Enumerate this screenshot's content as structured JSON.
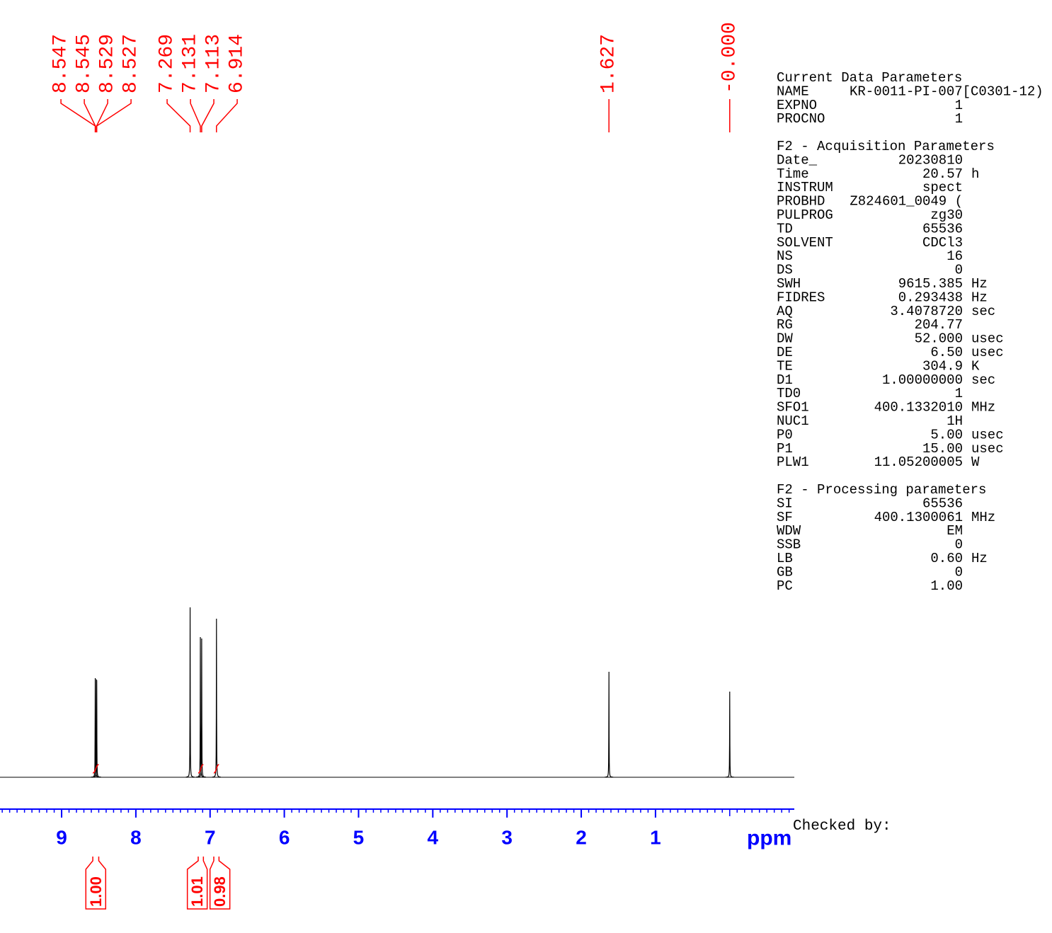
{
  "chart_data": {
    "type": "nmr",
    "x_label": "ppm",
    "xlim": [
      9.83,
      -0.87
    ],
    "xticks": [
      9,
      8,
      7,
      6,
      5,
      4,
      3,
      2,
      1
    ],
    "ylim": [
      0,
      250
    ],
    "color": "#000000",
    "label_color": "#ff0000",
    "axis_color": "#0000ff",
    "peaks": [
      {
        "ppm": 8.547,
        "intensity": 140
      },
      {
        "ppm": 8.545,
        "intensity": 139
      },
      {
        "ppm": 8.529,
        "intensity": 138
      },
      {
        "ppm": 8.527,
        "intensity": 137
      },
      {
        "ppm": 7.269,
        "intensity": 240
      },
      {
        "ppm": 7.131,
        "intensity": 198
      },
      {
        "ppm": 7.113,
        "intensity": 196
      },
      {
        "ppm": 6.914,
        "intensity": 224
      },
      {
        "ppm": 1.627,
        "intensity": 149
      },
      {
        "ppm": {
          "value": 0,
          "label": "-0.000"
        },
        "intensity": 121
      }
    ],
    "integrals": [
      {
        "from": 8.58,
        "to": 8.5,
        "value": {
          "value": 1,
          "label": "1.00"
        }
      },
      {
        "from": 7.16,
        "to": 7.09,
        "value": 1.01
      },
      {
        "from": 6.95,
        "to": 6.88,
        "value": 0.98
      }
    ]
  },
  "parameters": [
    {
      "title": "Current Data Parameters",
      "rows": [
        [
          "NAME",
          "KR-0011-PI-007[C0301-12)"
        ],
        [
          "EXPNO",
          "1"
        ],
        [
          "PROCNO",
          "1"
        ]
      ]
    },
    {
      "title": "F2 - Acquisition Parameters",
      "rows": [
        [
          "Date_",
          "20230810"
        ],
        [
          "Time",
          "20.57",
          "h"
        ],
        [
          "INSTRUM",
          "spect"
        ],
        [
          "PROBHD",
          "Z824601_0049 ("
        ],
        [
          "PULPROG",
          "zg30"
        ],
        [
          "TD",
          "65536"
        ],
        [
          "SOLVENT",
          "CDCl3"
        ],
        [
          "NS",
          "16"
        ],
        [
          "DS",
          "0"
        ],
        [
          "SWH",
          "9615.385",
          "Hz"
        ],
        [
          "FIDRES",
          "0.293438",
          "Hz"
        ],
        [
          "AQ",
          "3.4078720",
          "sec"
        ],
        [
          "RG",
          "204.77"
        ],
        [
          "DW",
          "52.000",
          "usec"
        ],
        [
          "DE",
          "6.50",
          "usec"
        ],
        [
          "TE",
          "304.9",
          "K"
        ],
        [
          "D1",
          "1.00000000",
          "sec"
        ],
        [
          "TD0",
          "1"
        ],
        [
          "SFO1",
          "400.1332010",
          "MHz"
        ],
        [
          "NUC1",
          "1H"
        ],
        [
          "P0",
          "5.00",
          "usec"
        ],
        [
          "P1",
          "15.00",
          "usec"
        ],
        [
          "PLW1",
          "11.05200005",
          "W"
        ]
      ]
    },
    {
      "title": "F2 - Processing parameters",
      "rows": [
        [
          "SI",
          "65536"
        ],
        [
          "SF",
          "400.1300061",
          "MHz"
        ],
        [
          "WDW",
          "EM"
        ],
        [
          "SSB",
          "0"
        ],
        [
          "LB",
          "0.60",
          "Hz"
        ],
        [
          "GB",
          "0"
        ],
        [
          "PC",
          "1.00"
        ]
      ]
    }
  ],
  "footer": "Checked by:"
}
